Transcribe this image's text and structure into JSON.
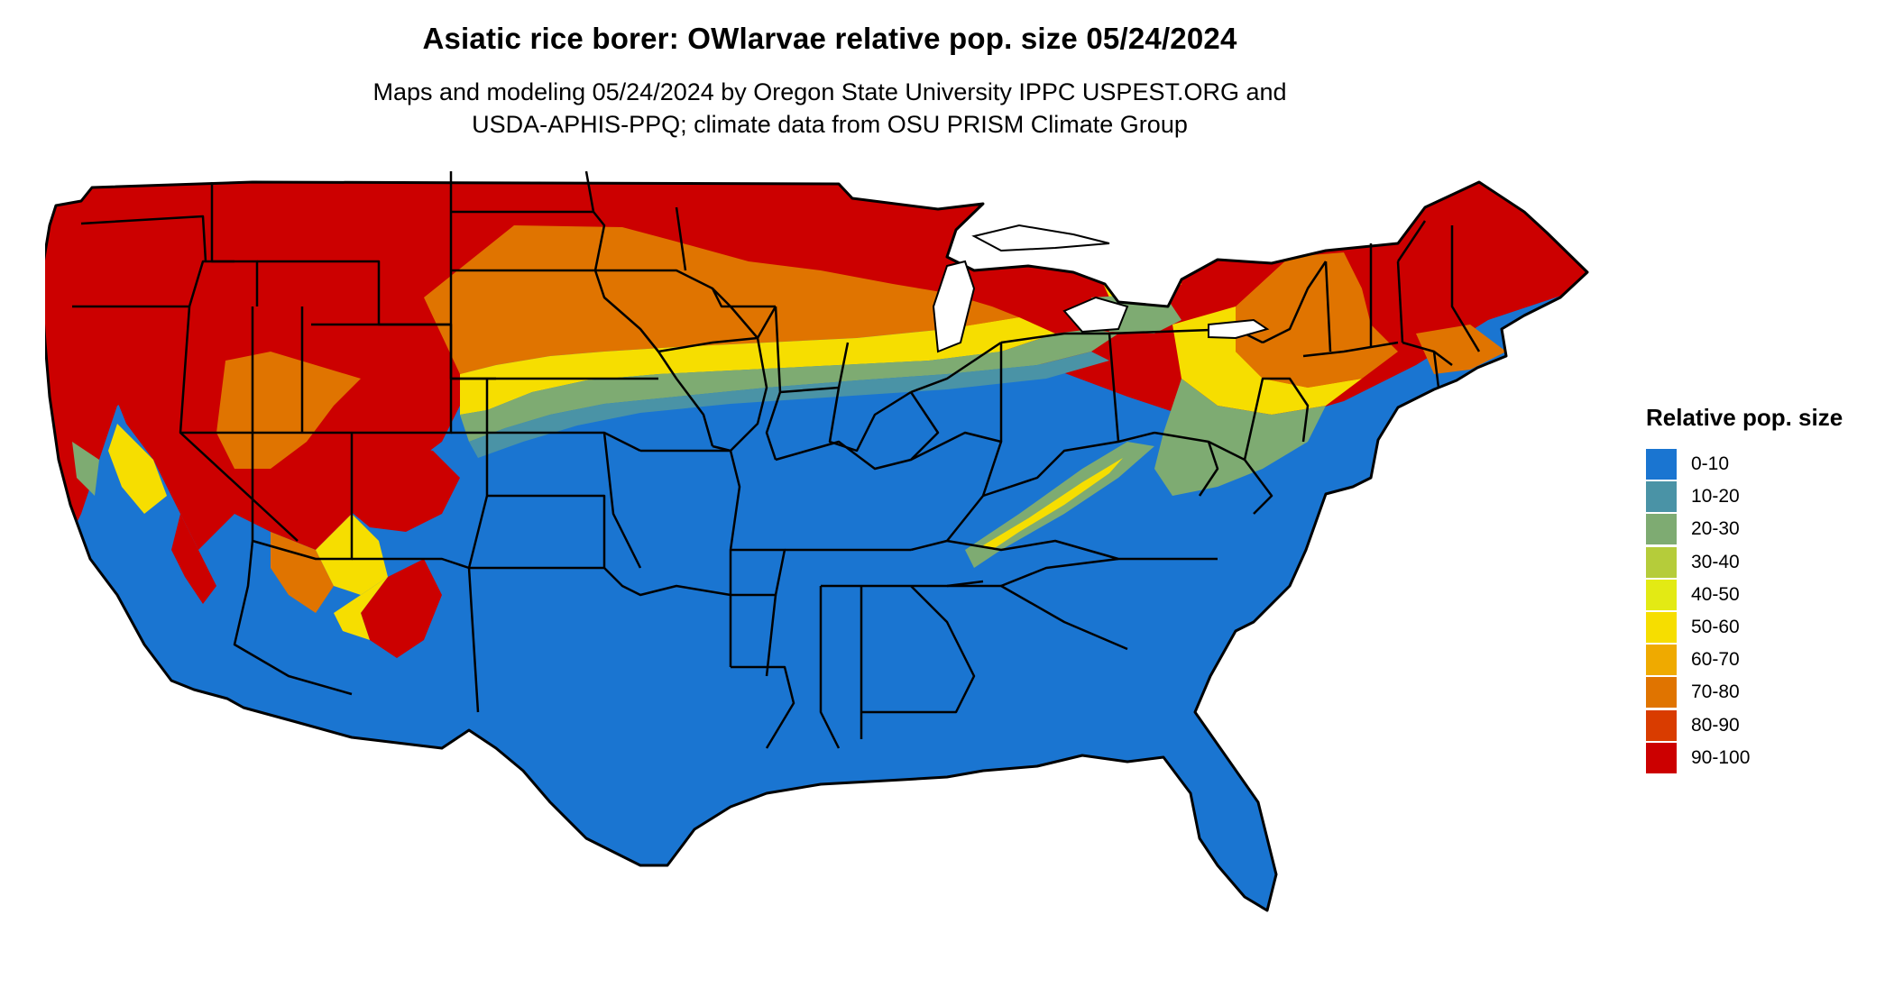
{
  "title": "Asiatic rice borer: OWlarvae relative pop. size 05/24/2024",
  "subtitle_lines": [
    "Maps and modeling 05/24/2024 by Oregon State University IPPC USPEST.ORG and",
    "USDA-APHIS-PPQ; climate data from OSU PRISM Climate Group"
  ],
  "legend": {
    "title": "Relative pop. size",
    "items": [
      {
        "label": "0-10",
        "color": "#1a75d1"
      },
      {
        "label": "10-20",
        "color": "#4a93a6"
      },
      {
        "label": "20-30",
        "color": "#7eab72"
      },
      {
        "label": "30-40",
        "color": "#b5cc3a"
      },
      {
        "label": "40-50",
        "color": "#e3ea14"
      },
      {
        "label": "50-60",
        "color": "#f6de00"
      },
      {
        "label": "60-70",
        "color": "#efaa00"
      },
      {
        "label": "70-80",
        "color": "#e07400"
      },
      {
        "label": "80-90",
        "color": "#d93c00"
      },
      {
        "label": "90-100",
        "color": "#cc0000"
      }
    ]
  },
  "map": {
    "region": "Contiguous United States",
    "colors": {
      "low": "#1a75d1",
      "high": "#cc0000",
      "border": "#000000"
    }
  }
}
